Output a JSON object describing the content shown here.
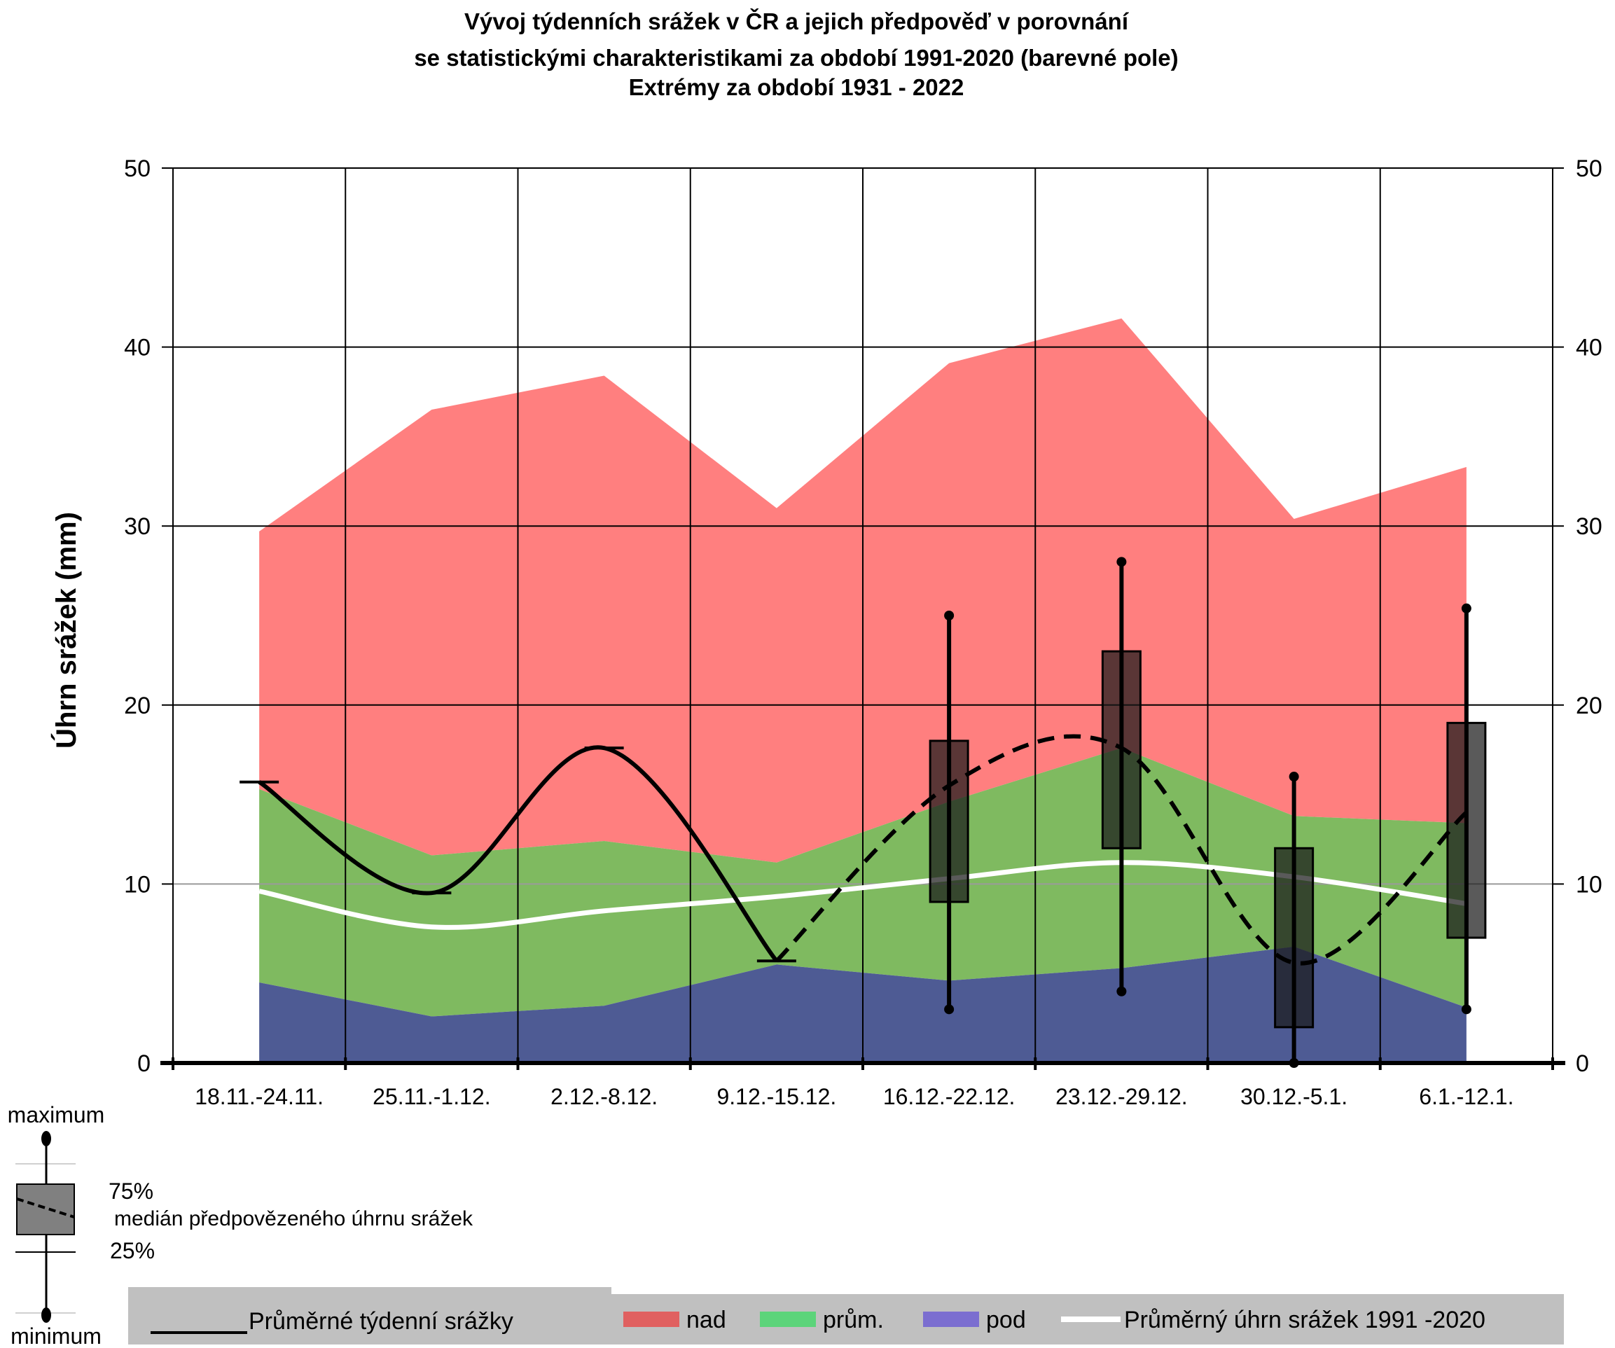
{
  "chart_data": {
    "type": "area",
    "title": [
      "Vývoj týdenních srážek v ČR a jejich předpověď v porovnání",
      "se statistickými charakteristikami za období 1991-2020 (barevné pole)",
      "Extrémy za období 1931 - 2022"
    ],
    "ylabel": "Úhrn srážek (mm)",
    "ylim": [
      0,
      50
    ],
    "yticks": [
      0,
      10,
      20,
      30,
      40,
      50
    ],
    "grid": true,
    "categories": [
      "18.11.-24.11.",
      "25.11.-1.12.",
      "2.12.-8.12.",
      "9.12.-15.12.",
      "16.12.-22.12.",
      "23.12.-29.12.",
      "30.12.-5.1.",
      "6.1.-12.1."
    ],
    "bands": {
      "pod": [
        4.5,
        2.6,
        3.2,
        5.5,
        4.6,
        5.3,
        6.5,
        3.1
      ],
      "prum": [
        15.3,
        11.6,
        12.4,
        11.2,
        14.6,
        17.6,
        13.8,
        13.4
      ],
      "nad": [
        29.7,
        36.5,
        38.4,
        31.0,
        39.1,
        41.6,
        30.4,
        33.3
      ]
    },
    "mean_1991_2020": [
      9.6,
      7.6,
      8.5,
      9.3,
      10.3,
      11.2,
      10.4,
      8.9
    ],
    "weekly_observed": [
      15.7,
      9.5,
      17.6,
      5.7
    ],
    "forecast_median": [
      null,
      null,
      null,
      5.7,
      15.5,
      17.6,
      5.6,
      14.0
    ],
    "forecast_boxes": [
      {
        "category": "16.12.-22.12.",
        "min": 3.0,
        "q25": 9.0,
        "q75": 18.0,
        "max": 25.0
      },
      {
        "category": "23.12.-29.12.",
        "min": 4.0,
        "q25": 12.0,
        "q75": 23.0,
        "max": 28.0
      },
      {
        "category": "30.12.-5.1.",
        "min": 0.0,
        "q25": 2.0,
        "q75": 12.0,
        "max": 16.0
      },
      {
        "category": "6.1.-12.1.",
        "min": 3.0,
        "q25": 7.0,
        "q75": 19.0,
        "max": 25.4
      }
    ],
    "colors": {
      "nad": "#ff7f7f",
      "prum": "#7fba60",
      "pod": "#4e5b94",
      "mean_line": "#ffffff",
      "box": "#1a1a1a"
    },
    "box_legend": {
      "maximum": "maximum",
      "q75": "75%",
      "median": "medián předpovězeného úhrnu srážek",
      "q25": "25%",
      "minimum": "minimum"
    },
    "legend": {
      "observed": "Průměrné týdenní srážky",
      "nad": "nad",
      "prum": "prům.",
      "pod": "pod",
      "mean": "Průměrný úhrn srážek 1991 -2020",
      "colors": {
        "nad": "#e06060",
        "prum": "#5cd47a",
        "pod": "#7b6ed0"
      }
    }
  }
}
